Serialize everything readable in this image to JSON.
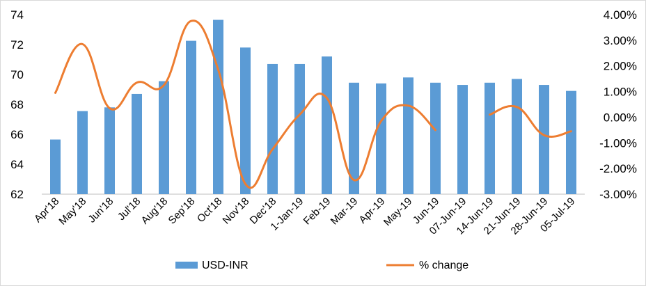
{
  "chart_data": {
    "type": "bar",
    "categories": [
      "Apr'18",
      "May'18",
      "Jun'18",
      "Jul'18",
      "Aug'18",
      "Sep'18",
      "Oct'18",
      "Nov'18",
      "Dec'18",
      "1-Jan-19",
      "Feb-19",
      "Mar-19",
      "Apr-19",
      "May-19",
      "Jun-19",
      "07-Jun-19",
      "14-Jun-19",
      "21-Jun-19",
      "28-Jun-19",
      "05-Jul-19"
    ],
    "series": [
      {
        "name": "USD-INR",
        "type": "bar",
        "axis": "left",
        "color": "#5b9bd5",
        "values": [
          65.65,
          67.55,
          67.8,
          68.7,
          69.55,
          72.25,
          73.65,
          71.8,
          70.7,
          70.7,
          71.2,
          69.45,
          69.4,
          69.8,
          69.45,
          69.3,
          69.45,
          69.7,
          69.3,
          68.9
        ]
      },
      {
        "name": "% change",
        "type": "line",
        "axis": "right",
        "color": "#ed7d31",
        "values": [
          0.95,
          2.85,
          0.35,
          1.35,
          1.25,
          3.75,
          1.85,
          -2.6,
          -1.25,
          0.1,
          0.75,
          -2.45,
          -0.15,
          0.45,
          -0.5,
          null,
          0.1,
          0.4,
          -0.7,
          -0.55
        ]
      }
    ],
    "y_left": {
      "ylim": [
        62,
        74
      ],
      "ticks": [
        "62",
        "64",
        "66",
        "68",
        "70",
        "72",
        "74"
      ]
    },
    "y_right": {
      "ylim": [
        -3,
        4
      ],
      "ticks": [
        "-3.00%",
        "-2.00%",
        "-1.00%",
        "0.00%",
        "1.00%",
        "2.00%",
        "3.00%",
        "4.00%"
      ]
    },
    "legend_position": "bottom",
    "grid": false
  },
  "legend": {
    "bar_label": "USD-INR",
    "line_label": "% change"
  }
}
